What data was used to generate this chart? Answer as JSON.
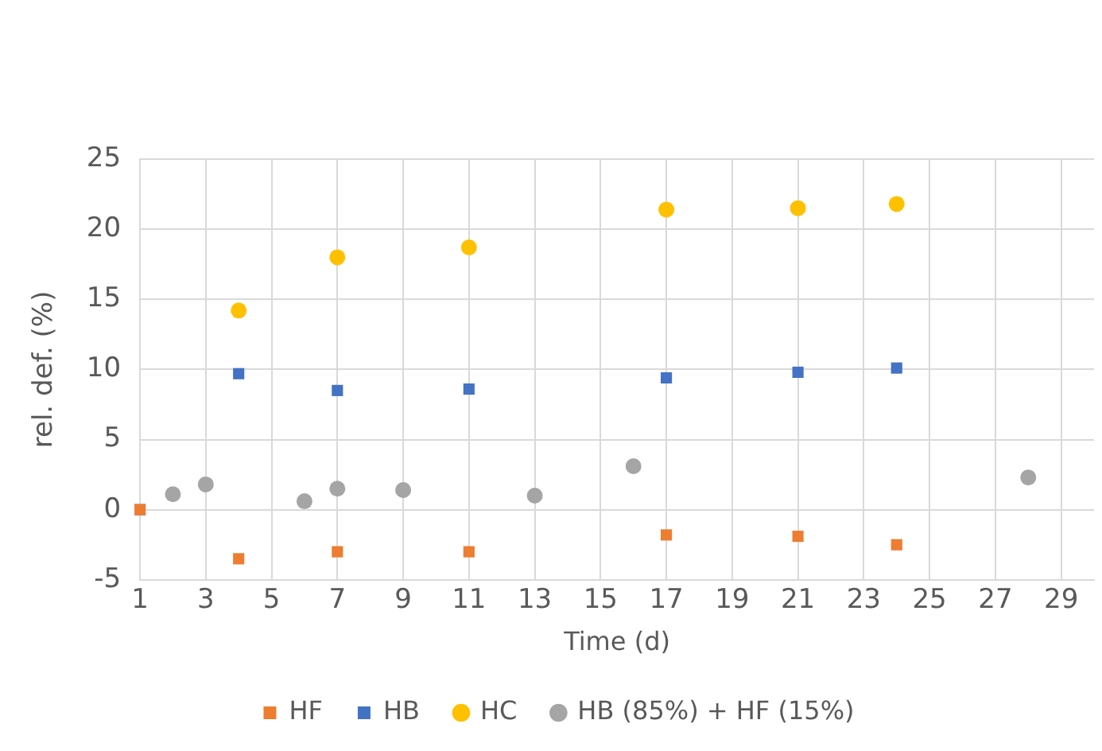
{
  "chart_data": {
    "type": "scatter",
    "xlabel": "Time (d)",
    "ylabel": "rel. def. (%)",
    "xlim": [
      1,
      30
    ],
    "xticks": [
      1,
      3,
      5,
      7,
      9,
      11,
      13,
      15,
      17,
      19,
      21,
      23,
      25,
      27,
      29
    ],
    "ylim": [
      -5,
      25
    ],
    "yticks": [
      -5,
      0,
      5,
      10,
      15,
      20,
      25
    ],
    "grid": true,
    "legend": "bottom",
    "series": [
      {
        "name": "HF",
        "color": "#ed7d31",
        "marker": "square",
        "x": [
          1,
          4,
          7,
          11,
          17,
          21,
          24
        ],
        "values": [
          0,
          -3.5,
          -3.0,
          -3.0,
          -1.8,
          -1.9,
          -2.5
        ]
      },
      {
        "name": "HB",
        "color": "#4472c4",
        "marker": "square",
        "x": [
          1,
          4,
          7,
          11,
          17,
          21,
          24
        ],
        "values": [
          0,
          9.7,
          8.5,
          8.6,
          9.4,
          9.8,
          10.1
        ]
      },
      {
        "name": "HC",
        "color": "#ffc000",
        "marker": "circle",
        "x": [
          4,
          7,
          11,
          17,
          21,
          24
        ],
        "values": [
          14.2,
          18.0,
          18.7,
          21.4,
          21.5,
          21.8
        ]
      },
      {
        "name": "HB (85%) + HF (15%)",
        "color": "#a5a5a5",
        "marker": "circle",
        "x": [
          2,
          3,
          6,
          7,
          9,
          13,
          16,
          28
        ],
        "values": [
          1.1,
          1.8,
          0.6,
          1.5,
          1.4,
          1.0,
          3.1,
          2.3
        ]
      }
    ]
  }
}
